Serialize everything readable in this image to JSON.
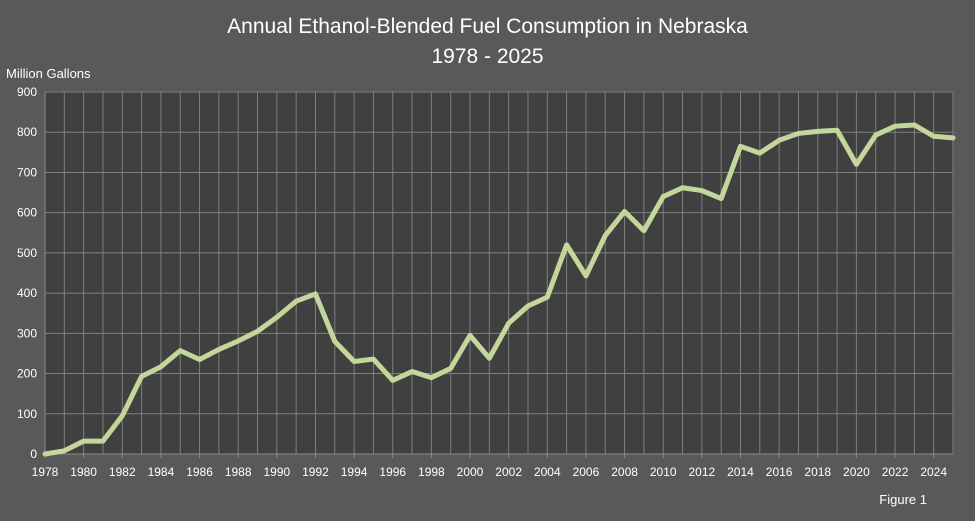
{
  "chart_data": {
    "type": "line",
    "title": "Annual Ethanol-Blended Fuel Consumption in Nebraska",
    "subtitle": "1978 - 2025",
    "ylabel": "Million Gallons",
    "xlabel": "",
    "figure_label": "Figure 1",
    "xlim": [
      1978,
      2025
    ],
    "ylim": [
      0,
      900
    ],
    "y_ticks": [
      0,
      100,
      200,
      300,
      400,
      500,
      600,
      700,
      800,
      900
    ],
    "x_ticks": [
      1978,
      1980,
      1982,
      1984,
      1986,
      1988,
      1990,
      1992,
      1994,
      1996,
      1998,
      2000,
      2002,
      2004,
      2006,
      2008,
      2010,
      2012,
      2014,
      2016,
      2018,
      2020,
      2022,
      2024
    ],
    "grid": true,
    "series": [
      {
        "color": "#c4d79b",
        "x": [
          1978,
          1979,
          1980,
          1981,
          1982,
          1983,
          1984,
          1985,
          1986,
          1987,
          1988,
          1989,
          1990,
          1991,
          1992,
          1993,
          1994,
          1995,
          1996,
          1997,
          1998,
          1999,
          2000,
          2001,
          2002,
          2003,
          2004,
          2005,
          2006,
          2007,
          2008,
          2009,
          2010,
          2011,
          2012,
          2013,
          2014,
          2015,
          2016,
          2017,
          2018,
          2019,
          2020,
          2021,
          2022,
          2023,
          2024,
          2025
        ],
        "values": [
          0,
          8,
          32,
          32,
          95,
          193,
          217,
          257,
          235,
          260,
          281,
          305,
          340,
          380,
          398,
          280,
          230,
          236,
          183,
          205,
          190,
          213,
          295,
          238,
          325,
          368,
          390,
          520,
          443,
          543,
          603,
          555,
          640,
          662,
          655,
          635,
          765,
          748,
          780,
          797,
          802,
          805,
          720,
          793,
          815,
          818,
          790,
          786
        ]
      }
    ]
  },
  "colors": {
    "background": "#595959",
    "plot_area": "#404040",
    "grid": "#7f7f7f",
    "line": "#c4d79b",
    "text": "#ffffff"
  }
}
